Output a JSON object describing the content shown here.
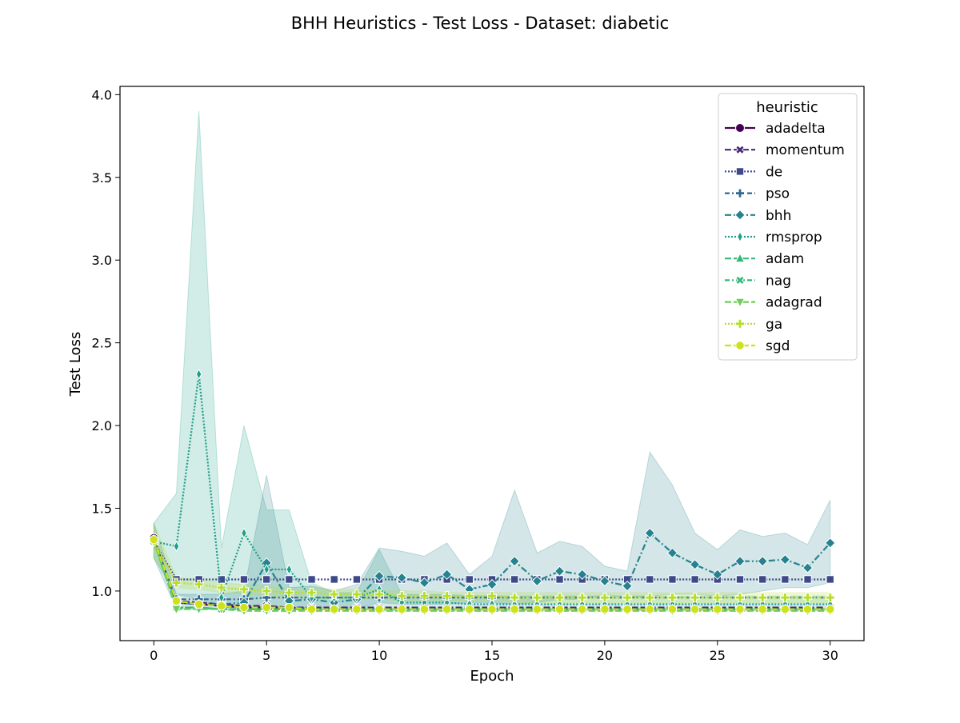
{
  "chart_data": {
    "type": "line",
    "title": "BHH Heuristics - Test Loss - Dataset: diabetic",
    "xlabel": "Epoch",
    "ylabel": "Test Loss",
    "xlim": [
      -1.5,
      31.5
    ],
    "ylim": [
      0.7,
      4.05
    ],
    "xticks": [
      0,
      5,
      10,
      15,
      20,
      25,
      30
    ],
    "yticks": [
      1.0,
      1.5,
      2.0,
      2.5,
      3.0,
      3.5,
      4.0
    ],
    "xtick_labels": [
      "0",
      "5",
      "10",
      "15",
      "20",
      "25",
      "30"
    ],
    "ytick_labels": [
      "1.0",
      "1.5",
      "2.0",
      "2.5",
      "3.0",
      "3.5",
      "4.0"
    ],
    "legend_title": "heuristic",
    "legend_position": "top-right",
    "grid": false,
    "x": [
      0,
      1,
      2,
      3,
      4,
      5,
      6,
      7,
      8,
      9,
      10,
      11,
      12,
      13,
      14,
      15,
      16,
      17,
      18,
      19,
      20,
      21,
      22,
      23,
      24,
      25,
      26,
      27,
      28,
      29,
      30
    ],
    "series": [
      {
        "name": "adadelta",
        "color": "#440154",
        "dash": "solid",
        "marker": "circle",
        "values": [
          1.32,
          0.93,
          0.92,
          0.91,
          0.9,
          0.9,
          0.9,
          0.89,
          0.89,
          0.89,
          0.89,
          0.89,
          0.89,
          0.89,
          0.89,
          0.89,
          0.89,
          0.89,
          0.89,
          0.89,
          0.89,
          0.89,
          0.89,
          0.89,
          0.89,
          0.89,
          0.89,
          0.89,
          0.89,
          0.89,
          0.89
        ]
      },
      {
        "name": "momentum",
        "color": "#482878",
        "dash": "8,3",
        "marker": "x",
        "values": [
          1.3,
          0.94,
          0.93,
          0.92,
          0.91,
          0.91,
          0.9,
          0.9,
          0.9,
          0.9,
          0.9,
          0.9,
          0.9,
          0.9,
          0.9,
          0.9,
          0.9,
          0.9,
          0.9,
          0.9,
          0.9,
          0.9,
          0.9,
          0.9,
          0.9,
          0.9,
          0.9,
          0.9,
          0.9,
          0.9,
          0.9
        ]
      },
      {
        "name": "de",
        "color": "#3e4989",
        "dash": "2,2",
        "marker": "square",
        "values": [
          1.3,
          1.07,
          1.07,
          1.07,
          1.07,
          1.07,
          1.07,
          1.07,
          1.07,
          1.07,
          1.07,
          1.07,
          1.07,
          1.07,
          1.07,
          1.07,
          1.07,
          1.07,
          1.07,
          1.07,
          1.07,
          1.07,
          1.07,
          1.07,
          1.07,
          1.07,
          1.07,
          1.07,
          1.07,
          1.07,
          1.07
        ]
      },
      {
        "name": "pso",
        "color": "#31688e",
        "dash": "6,3,2,3",
        "marker": "plus",
        "values": [
          1.3,
          0.95,
          0.95,
          0.95,
          0.95,
          0.96,
          0.96,
          0.96,
          0.96,
          0.96,
          0.96,
          0.96,
          0.96,
          0.96,
          0.96,
          0.96,
          0.96,
          0.96,
          0.96,
          0.96,
          0.96,
          0.96,
          0.96,
          0.96,
          0.96,
          0.96,
          0.96,
          0.96,
          0.96,
          0.96,
          0.96
        ]
      },
      {
        "name": "bhh",
        "color": "#26828e",
        "dash": "8,3,2,3",
        "marker": "diamond",
        "values": [
          1.31,
          0.93,
          0.92,
          0.92,
          0.93,
          1.17,
          0.94,
          0.95,
          0.93,
          0.95,
          1.09,
          1.08,
          1.05,
          1.1,
          1.01,
          1.04,
          1.18,
          1.06,
          1.12,
          1.1,
          1.06,
          1.03,
          1.35,
          1.23,
          1.16,
          1.1,
          1.18,
          1.18,
          1.19,
          1.14,
          1.29
        ]
      },
      {
        "name": "rmsprop",
        "color": "#1f9e89",
        "dash": "2,2",
        "marker": "thin-diamond",
        "values": [
          1.3,
          1.27,
          2.31,
          0.96,
          1.35,
          1.13,
          1.13,
          0.96,
          0.96,
          0.96,
          1.01,
          0.93,
          0.93,
          0.93,
          0.92,
          0.92,
          0.92,
          0.92,
          0.92,
          0.92,
          0.92,
          0.92,
          0.92,
          0.92,
          0.92,
          0.92,
          0.92,
          0.92,
          0.92,
          0.92,
          0.92
        ]
      },
      {
        "name": "adam",
        "color": "#35b779",
        "dash": "8,3",
        "marker": "triangle-up",
        "values": [
          1.3,
          0.9,
          0.9,
          0.89,
          0.89,
          0.89,
          0.89,
          0.89,
          0.89,
          0.89,
          0.89,
          0.89,
          0.89,
          0.89,
          0.89,
          0.89,
          0.89,
          0.89,
          0.89,
          0.89,
          0.89,
          0.89,
          0.89,
          0.89,
          0.89,
          0.89,
          0.89,
          0.89,
          0.89,
          0.89,
          0.89
        ]
      },
      {
        "name": "nag",
        "color": "#35b779",
        "dash": "6,3,2,3",
        "marker": "x",
        "values": [
          1.3,
          0.9,
          0.9,
          0.89,
          0.89,
          0.89,
          0.89,
          0.89,
          0.89,
          0.89,
          0.89,
          0.89,
          0.89,
          0.89,
          0.89,
          0.89,
          0.89,
          0.89,
          0.89,
          0.89,
          0.89,
          0.89,
          0.89,
          0.89,
          0.89,
          0.89,
          0.89,
          0.89,
          0.89,
          0.89,
          0.89
        ]
      },
      {
        "name": "adagrad",
        "color": "#6ece58",
        "dash": "8,3",
        "marker": "triangle-down",
        "values": [
          1.3,
          0.89,
          0.89,
          0.89,
          0.88,
          0.88,
          0.88,
          0.88,
          0.88,
          0.88,
          0.88,
          0.88,
          0.88,
          0.88,
          0.88,
          0.88,
          0.88,
          0.88,
          0.88,
          0.88,
          0.88,
          0.88,
          0.88,
          0.88,
          0.88,
          0.88,
          0.88,
          0.88,
          0.88,
          0.88,
          0.88
        ]
      },
      {
        "name": "ga",
        "color": "#b5de2b",
        "dash": "2,2",
        "marker": "plus",
        "values": [
          1.3,
          1.05,
          1.04,
          1.02,
          1.01,
          1.0,
          0.99,
          0.99,
          0.98,
          0.98,
          0.98,
          0.97,
          0.97,
          0.97,
          0.97,
          0.97,
          0.96,
          0.96,
          0.96,
          0.96,
          0.96,
          0.96,
          0.96,
          0.96,
          0.96,
          0.96,
          0.96,
          0.96,
          0.96,
          0.96,
          0.96
        ]
      },
      {
        "name": "sgd",
        "color": "#cde11d",
        "dash": "8,3",
        "marker": "octagon",
        "values": [
          1.31,
          0.94,
          0.92,
          0.91,
          0.9,
          0.9,
          0.9,
          0.89,
          0.89,
          0.89,
          0.89,
          0.89,
          0.89,
          0.89,
          0.89,
          0.89,
          0.89,
          0.89,
          0.89,
          0.89,
          0.89,
          0.89,
          0.89,
          0.89,
          0.89,
          0.89,
          0.89,
          0.89,
          0.89,
          0.89,
          0.89
        ]
      }
    ],
    "confidence_bands": [
      {
        "series": "rmsprop",
        "color": "#1f9e89",
        "upper": [
          1.41,
          1.59,
          3.9,
          1.26,
          2.0,
          1.49,
          1.49,
          1.05,
          0.99,
          0.99,
          1.25,
          0.98,
          0.98,
          0.98,
          0.97,
          0.97,
          0.97,
          0.97,
          0.97,
          0.97,
          0.97,
          0.97,
          0.97,
          0.97,
          0.97,
          0.97,
          0.97,
          0.97,
          0.97,
          0.97,
          0.97
        ],
        "lower": [
          1.2,
          0.98,
          0.95,
          0.9,
          0.9,
          0.9,
          0.9,
          0.9,
          0.9,
          0.9,
          0.88,
          0.88,
          0.88,
          0.88,
          0.88,
          0.88,
          0.88,
          0.88,
          0.88,
          0.88,
          0.88,
          0.88,
          0.88,
          0.88,
          0.88,
          0.88,
          0.88,
          0.88,
          0.88,
          0.88,
          0.88
        ]
      },
      {
        "series": "bhh",
        "color": "#26828e",
        "upper": [
          1.41,
          0.98,
          0.98,
          0.98,
          1.0,
          1.7,
          1.02,
          1.03,
          1.0,
          1.04,
          1.26,
          1.24,
          1.21,
          1.29,
          1.1,
          1.21,
          1.61,
          1.23,
          1.3,
          1.27,
          1.15,
          1.12,
          1.84,
          1.64,
          1.35,
          1.25,
          1.37,
          1.33,
          1.35,
          1.28,
          1.55
        ],
        "lower": [
          1.2,
          0.89,
          0.89,
          0.89,
          0.89,
          0.9,
          0.89,
          0.89,
          0.89,
          0.89,
          0.93,
          0.92,
          0.92,
          0.92,
          0.93,
          0.93,
          0.92,
          0.93,
          0.95,
          0.95,
          0.98,
          0.96,
          0.97,
          0.98,
          0.98,
          0.97,
          0.98,
          1.0,
          1.02,
          1.02,
          1.05
        ]
      },
      {
        "series": "ga",
        "color": "#b5de2b",
        "upper": [
          1.41,
          1.08,
          1.07,
          1.05,
          1.04,
          1.03,
          1.02,
          1.02,
          1.01,
          1.01,
          1.0,
          1.0,
          1.0,
          0.99,
          0.99,
          0.99,
          0.99,
          0.99,
          0.99,
          0.99,
          0.99,
          0.99,
          0.99,
          0.99,
          0.99,
          0.99,
          0.99,
          0.99,
          0.99,
          0.99,
          0.99
        ],
        "lower": [
          1.2,
          1.02,
          1.01,
          0.99,
          0.98,
          0.97,
          0.96,
          0.96,
          0.95,
          0.95,
          0.95,
          0.94,
          0.94,
          0.94,
          0.94,
          0.94,
          0.93,
          0.93,
          0.93,
          0.93,
          0.93,
          0.93,
          0.93,
          0.93,
          0.93,
          0.93,
          0.93,
          0.93,
          0.93,
          0.93,
          0.93
        ]
      }
    ]
  }
}
